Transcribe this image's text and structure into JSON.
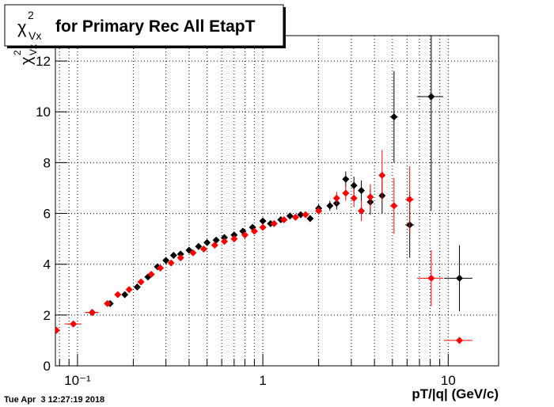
{
  "chart_data": {
    "type": "scatter",
    "title": {
      "symbol": "χ",
      "sup": "2",
      "sub": "Vx",
      "text": "for Primary Rec All EtapT"
    },
    "ylabel": {
      "symbol": "χ",
      "sup": "2",
      "sub": "Vx"
    },
    "xlabel": "pT/|q| (GeV/c)",
    "timestamp": "Tue Apr  3 12:27:19 2018",
    "xlog": true,
    "grid": true,
    "xlim": [
      0.076,
      18.7
    ],
    "ylim": [
      0,
      13
    ],
    "xticks": [
      {
        "value": 0.1,
        "label": "10⁻¹"
      },
      1,
      10
    ],
    "xminorticks": [
      0.08,
      0.09,
      0.2,
      0.3,
      0.4,
      0.5,
      0.6,
      0.7,
      0.8,
      0.9,
      2,
      3,
      4,
      5,
      6,
      7,
      8,
      9
    ],
    "yticks": [
      0,
      2,
      4,
      6,
      8,
      10,
      12
    ],
    "series": [
      {
        "name": "black",
        "color": "#000000",
        "x": [
          0.12,
          0.15,
          0.18,
          0.21,
          0.24,
          0.27,
          0.3,
          0.33,
          0.36,
          0.4,
          0.45,
          0.5,
          0.56,
          0.62,
          0.7,
          0.78,
          0.88,
          1.0,
          1.1,
          1.25,
          1.4,
          1.6,
          1.8,
          2.0,
          2.3,
          2.5,
          2.8,
          3.1,
          3.4,
          3.8,
          4.4,
          5.1,
          6.2,
          8.1,
          11.5
        ],
        "y": [
          2.1,
          2.45,
          2.8,
          3.1,
          3.5,
          3.9,
          4.15,
          4.35,
          4.4,
          4.55,
          4.7,
          4.85,
          4.95,
          5.05,
          5.15,
          5.3,
          5.45,
          5.7,
          5.6,
          5.75,
          5.9,
          5.95,
          5.8,
          6.2,
          6.3,
          6.4,
          7.35,
          7.1,
          6.9,
          6.45,
          6.7,
          9.8,
          5.55,
          10.6,
          3.45
        ],
        "xerr": [
          0.01,
          0.005,
          0.005,
          0.005,
          0.005,
          0.005,
          0.005,
          0.005,
          0.005,
          0.005,
          0.01,
          0.01,
          0.01,
          0.01,
          0.02,
          0.02,
          0.02,
          0.03,
          0.03,
          0.03,
          0.04,
          0.04,
          0.05,
          0.05,
          0.06,
          0.07,
          0.08,
          0.09,
          0.1,
          0.12,
          0.15,
          0.25,
          0.35,
          1.3,
          2
        ],
        "yerr": [
          0.05,
          0.05,
          0.05,
          0.05,
          0.05,
          0.05,
          0.05,
          0.05,
          0.05,
          0.05,
          0.05,
          0.05,
          0.05,
          0.05,
          0.05,
          0.06,
          0.06,
          0.08,
          0.08,
          0.1,
          0.1,
          0.12,
          0.12,
          0.15,
          0.2,
          0.25,
          0.3,
          0.35,
          0.4,
          0.5,
          0.7,
          1.8,
          1.3,
          4.5,
          1.3
        ]
      },
      {
        "name": "red",
        "color": "#ff0000",
        "x": [
          0.077,
          0.095,
          0.12,
          0.145,
          0.165,
          0.19,
          0.22,
          0.25,
          0.28,
          0.32,
          0.36,
          0.42,
          0.48,
          0.55,
          0.62,
          0.7,
          0.8,
          0.9,
          1.0,
          1.15,
          1.3,
          1.5,
          1.7,
          2.0,
          2.5,
          2.8,
          3.1,
          3.4,
          3.8,
          4.4,
          5.1,
          6.2,
          8.1,
          11.5
        ],
        "y": [
          1.4,
          1.65,
          2.1,
          2.45,
          2.8,
          3.0,
          3.3,
          3.6,
          3.85,
          4.05,
          4.25,
          4.45,
          4.6,
          4.75,
          4.9,
          5.0,
          5.15,
          5.3,
          5.45,
          5.6,
          5.75,
          5.85,
          5.95,
          6.1,
          6.6,
          6.8,
          6.6,
          6.1,
          6.65,
          7.5,
          6.3,
          6.55,
          3.45,
          1.0
        ],
        "xerr": [
          0.003,
          0.01,
          0.01,
          0.005,
          0.005,
          0.005,
          0.005,
          0.005,
          0.005,
          0.005,
          0.005,
          0.01,
          0.01,
          0.01,
          0.01,
          0.02,
          0.02,
          0.02,
          0.03,
          0.03,
          0.03,
          0.04,
          0.04,
          0.05,
          0.07,
          0.08,
          0.09,
          0.1,
          0.12,
          0.15,
          0.25,
          0.35,
          1.3,
          2
        ],
        "yerr": [
          0.05,
          0.05,
          0.05,
          0.05,
          0.05,
          0.05,
          0.05,
          0.05,
          0.05,
          0.05,
          0.05,
          0.05,
          0.05,
          0.05,
          0.05,
          0.05,
          0.06,
          0.06,
          0.08,
          0.08,
          0.1,
          0.1,
          0.12,
          0.15,
          0.25,
          0.3,
          0.35,
          0.4,
          0.5,
          1.0,
          1.1,
          1.3,
          1.1,
          0.05
        ]
      }
    ]
  }
}
